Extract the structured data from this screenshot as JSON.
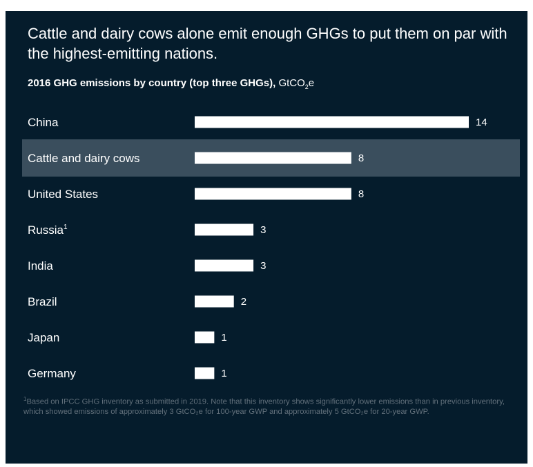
{
  "headline": "Cattle and dairy cows alone emit enough GHGs to put them on par with the highest-emitting nations.",
  "subtitle": {
    "bold": "2016 GHG emissions by country (top three GHGs),",
    "unit_prefix": "GtCO",
    "unit_sub": "2",
    "unit_suffix": "e"
  },
  "footnote": {
    "mark": "1",
    "text": "Based on IPCC GHG inventory as submitted in 2019. Note that this inventory shows significantly lower emissions than in previous inventory, which showed emissions of approximately 3 GtCO₂e for 100-year GWP and approximately 5 GtCO₂e for 20-year GWP."
  },
  "colors": {
    "background": "#051c2c",
    "bar": "#ffffff",
    "highlight_row": "#3a4e5d",
    "text": "#ffffff",
    "footnote": "#62707b"
  },
  "chart_data": {
    "type": "bar",
    "orientation": "horizontal",
    "title": "2016 GHG emissions by country (top three GHGs), GtCO₂e",
    "categories": [
      "China",
      "Cattle and dairy cows",
      "United States",
      "Russia",
      "India",
      "Brazil",
      "Japan",
      "Germany"
    ],
    "category_superscripts": [
      "",
      "",
      "",
      "1",
      "",
      "",
      "",
      ""
    ],
    "values": [
      14,
      8,
      8,
      3,
      3,
      2,
      1,
      1
    ],
    "highlighted": [
      "Cattle and dairy cows"
    ],
    "xlim": [
      0,
      14
    ],
    "grid": false,
    "legend": "none"
  }
}
